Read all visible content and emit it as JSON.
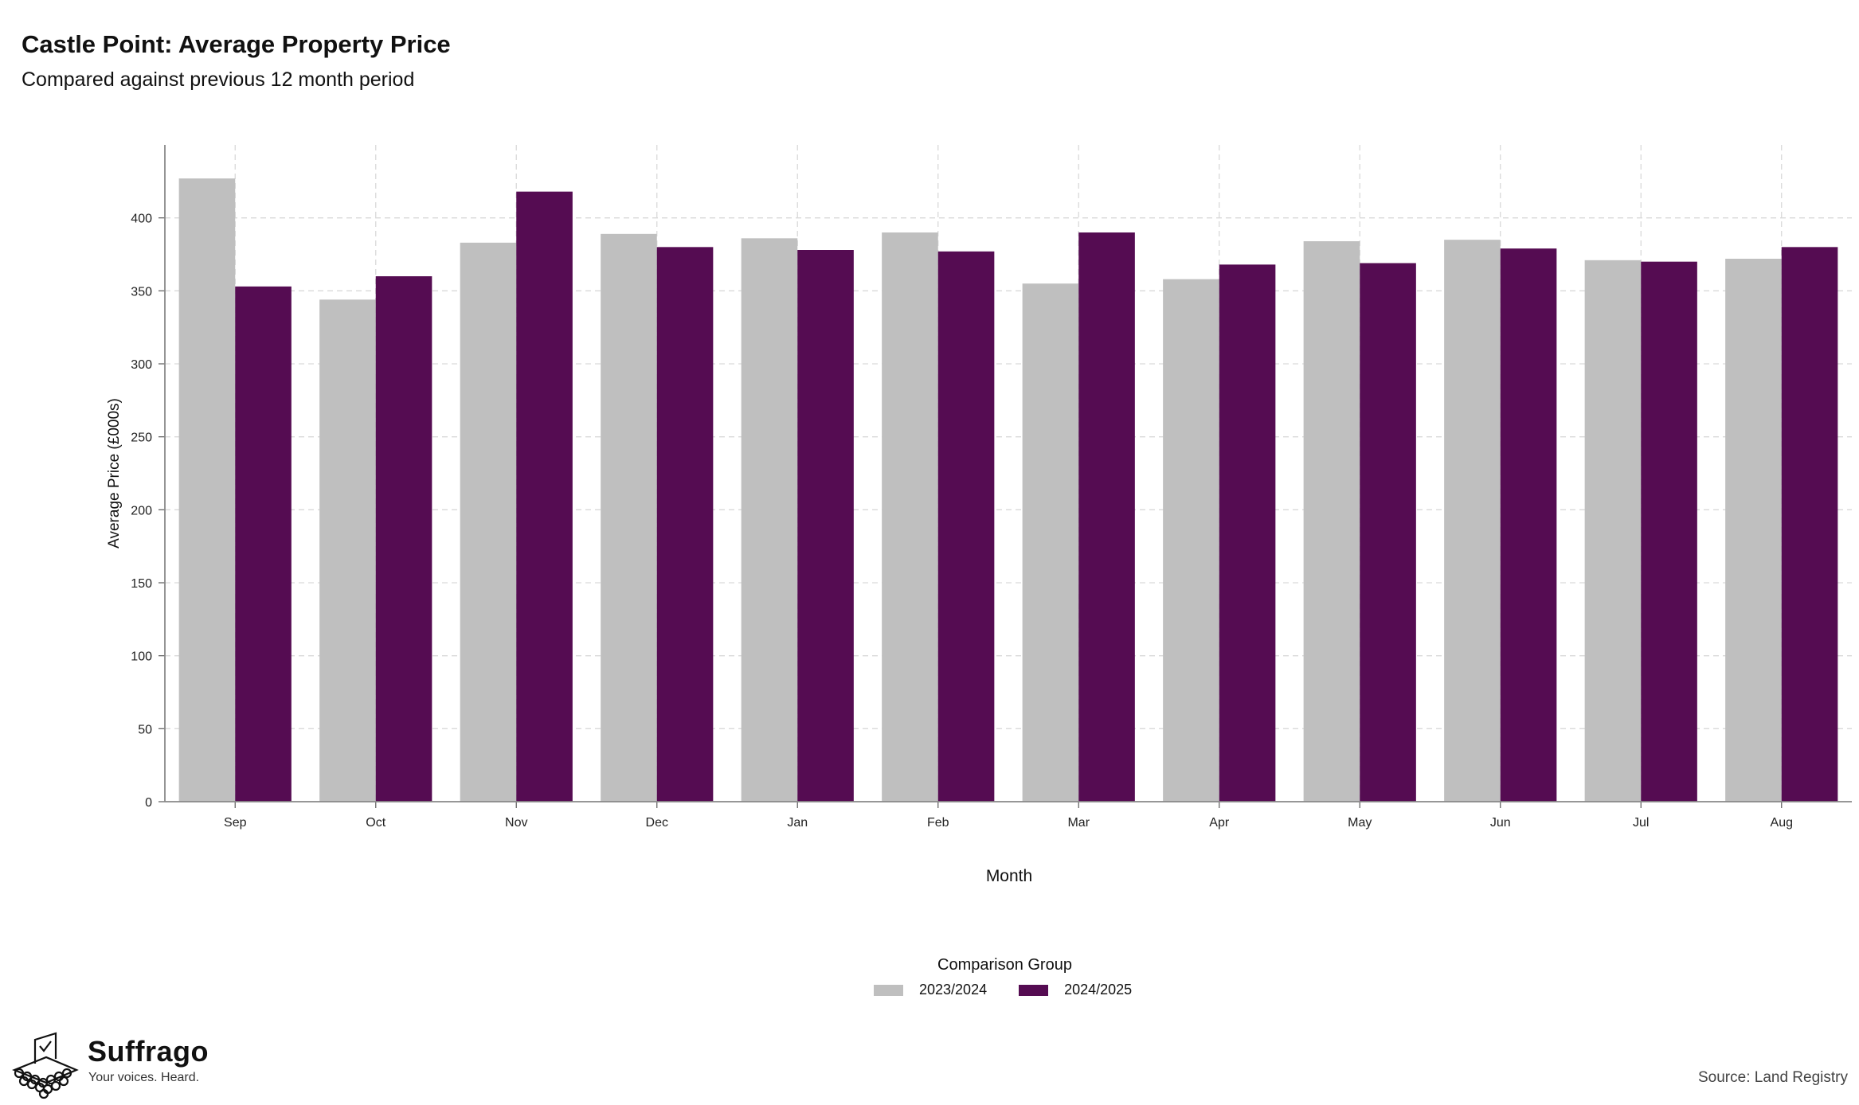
{
  "header": {
    "title": "Castle Point: Average Property Price",
    "subtitle": "Compared against previous 12 month period"
  },
  "legend": {
    "title": "Comparison Group",
    "items": [
      {
        "label": "2023/2024",
        "color": "#bfbfbf"
      },
      {
        "label": "2024/2025",
        "color": "#550c52"
      }
    ]
  },
  "footer": {
    "brand": "Suffrago",
    "tagline": "Your voices. Heard.",
    "source": "Source: Land Registry"
  },
  "chart_data": {
    "type": "bar",
    "xlabel": "Month",
    "ylabel": "Average Price (£000s)",
    "ylim": [
      0,
      450
    ],
    "yticks": [
      0,
      50,
      100,
      150,
      200,
      250,
      300,
      350,
      400
    ],
    "grid": true,
    "legend_position": "bottom",
    "categories": [
      "Sep",
      "Oct",
      "Nov",
      "Dec",
      "Jan",
      "Feb",
      "Mar",
      "Apr",
      "May",
      "Jun",
      "Jul",
      "Aug"
    ],
    "series": [
      {
        "name": "2023/2024",
        "color": "#bfbfbf",
        "values": [
          427,
          344,
          383,
          389,
          386,
          390,
          355,
          358,
          384,
          385,
          371,
          372
        ]
      },
      {
        "name": "2024/2025",
        "color": "#550c52",
        "values": [
          353,
          360,
          418,
          380,
          378,
          377,
          390,
          368,
          369,
          379,
          370,
          380
        ]
      }
    ]
  }
}
